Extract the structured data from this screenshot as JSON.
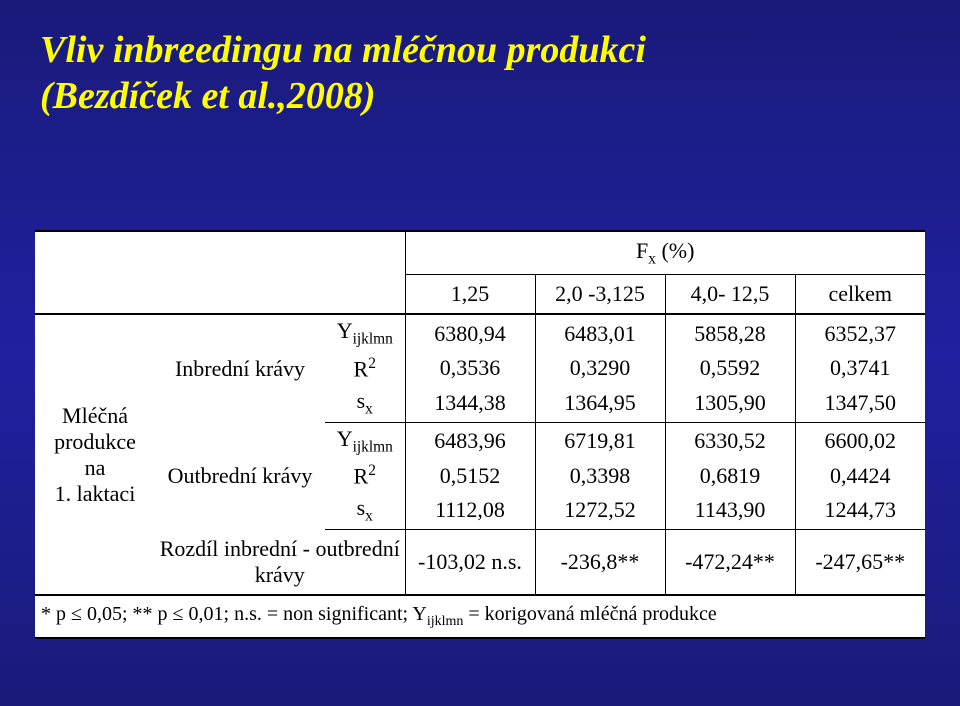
{
  "title_line1": "Vliv inbreedingu na mléčnou produkci",
  "title_line2": "(Bezdíček et al.,2008)",
  "table": {
    "fx_header": "F",
    "fx_sub": "x",
    "fx_pct": " (%)",
    "cols": [
      "1,25",
      "2,0 -3,125",
      "4,0- 12,5",
      "celkem"
    ],
    "row_big_l1": "Mléčná",
    "row_big_l2": "produkce na",
    "row_big_l3": "1. laktaci",
    "mid_inbred": "Inbrední krávy",
    "mid_outbred": "Outbrední krávy",
    "rozdil_l1": "Rozdíl inbrední - outbrední",
    "rozdil_l2": "krávy",
    "stat_Y": "Y",
    "stat_Y_sub": "ijklmn",
    "stat_R": "R",
    "stat_R_sup": "2",
    "stat_s": "s",
    "stat_s_sub": "x",
    "r1": [
      "6380,94",
      "6483,01",
      "5858,28",
      "6352,37"
    ],
    "r2": [
      "0,3536",
      "0,3290",
      "0,5592",
      "0,3741"
    ],
    "r3": [
      "1344,38",
      "1364,95",
      "1305,90",
      "1347,50"
    ],
    "r4": [
      "6483,96",
      "6719,81",
      "6330,52",
      "6600,02"
    ],
    "r5": [
      "0,5152",
      "0,3398",
      "0,6819",
      "0,4424"
    ],
    "r6": [
      "1112,08",
      "1272,52",
      "1143,90",
      "1244,73"
    ],
    "r7": [
      "-103,02 n.s.",
      "-236,8**",
      "-472,24**",
      "-247,65**"
    ],
    "footnote": "* p ≤ 0,05; ** p ≤ 0,01; n.s. = non significant; Y",
    "footnote_sub": "ijklmn",
    "footnote_tail": " = korigovaná mléčná produkce",
    "colors": {
      "bg_dark": "#1a1a7a",
      "title": "#ffff00",
      "table_bg": "#ffffff",
      "text": "#000000"
    }
  }
}
